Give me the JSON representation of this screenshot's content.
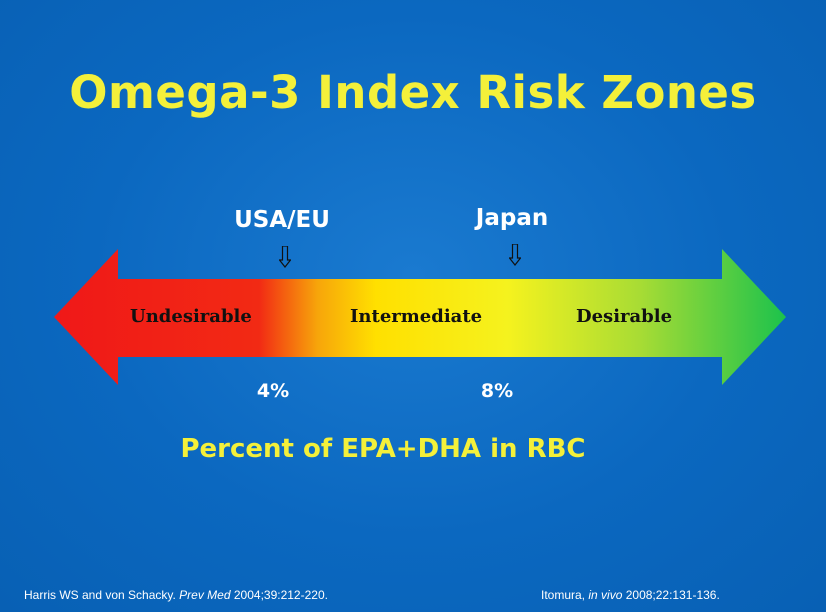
{
  "title": "Omega-3 Index Risk Zones",
  "markers": [
    {
      "label": "USA/EU"
    },
    {
      "label": "Japan"
    }
  ],
  "zones": [
    {
      "label": "Undesirable"
    },
    {
      "label": "Intermediate"
    },
    {
      "label": "Desirable"
    }
  ],
  "thresholds": [
    {
      "label": "4%"
    },
    {
      "label": "8%"
    }
  ],
  "axis_caption": "Percent of EPA+DHA in RBC",
  "citations": [
    {
      "authors": "Harris WS and von Schacky.",
      "journal": "Prev Med",
      "ref": "2004;39:212-220."
    },
    {
      "authors": "Itomura,",
      "journal": "in vivo",
      "ref": "2008;22:131-136."
    }
  ],
  "colors": {
    "background": "#0b68c0",
    "title": "#f4f03a",
    "gradient": [
      "#f01818",
      "#f24c10",
      "#ffd400",
      "#f7f21c",
      "#b8e030",
      "#22c84a"
    ]
  }
}
